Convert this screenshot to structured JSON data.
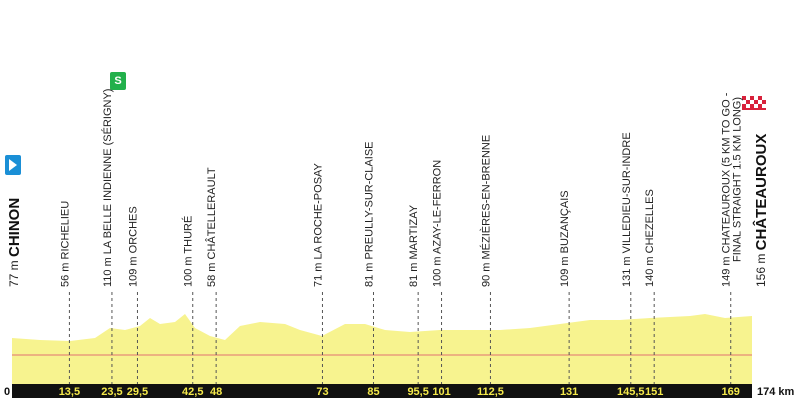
{
  "chart_data": {
    "type": "profile",
    "waypoints": [
      {
        "altitude": "77 m",
        "name": "CHINON",
        "km": {
          "value": 0,
          "label": "0"
        }
      },
      {
        "altitude": "56 m",
        "name": "RICHELIEU",
        "km": {
          "value": 13.5,
          "label": "13,5"
        }
      },
      {
        "altitude": "110 m",
        "name": "LA BELLE INDIENNE (SÉRIGNY)",
        "km": {
          "value": 23.5,
          "label": "23,5"
        }
      },
      {
        "altitude": "109 m",
        "name": "ORCHES",
        "km": {
          "value": 29.5,
          "label": "29,5"
        }
      },
      {
        "altitude": "100 m",
        "name": "THURÉ",
        "km": {
          "value": 42.5,
          "label": "42,5"
        }
      },
      {
        "altitude": "58 m",
        "name": "CHÂTELLERAULT",
        "km": 48
      },
      {
        "altitude": "71 m",
        "name": "LA ROCHE-POSAY",
        "km": 73
      },
      {
        "altitude": "81 m",
        "name": "PREULLY-SUR-CLAISE",
        "km": 85
      },
      {
        "altitude": "81 m",
        "name": "MARTIZAY",
        "km": {
          "value": 95.5,
          "label": "95,5"
        }
      },
      {
        "altitude": "100 m",
        "name": "AZAY-LE-FERRON",
        "km": 101
      },
      {
        "altitude": "90 m",
        "name": "MÉZIÈRES-EN-BRENNE",
        "km": {
          "value": 112.5,
          "label": "112,5"
        }
      },
      {
        "altitude": "109 m",
        "name": "BUZANÇAIS",
        "km": 131
      },
      {
        "altitude": "131 m",
        "name": "VILLEDIEU-SUR-INDRE",
        "km": {
          "value": 145.5,
          "label": "145,5"
        }
      },
      {
        "altitude": "140 m",
        "name": "CHEZELLES",
        "km": 151
      },
      {
        "altitude": "149 m",
        "name": "CHATEAUROUX (5 KM TO GO -",
        "name2": "FINAL STRAIGHT 1.5 KM LONG)",
        "km": 169
      },
      {
        "altitude": "156 m",
        "name": "CHÂTEAUROUX",
        "km": {
          "value": 174,
          "label": "174 km"
        }
      }
    ]
  }
}
